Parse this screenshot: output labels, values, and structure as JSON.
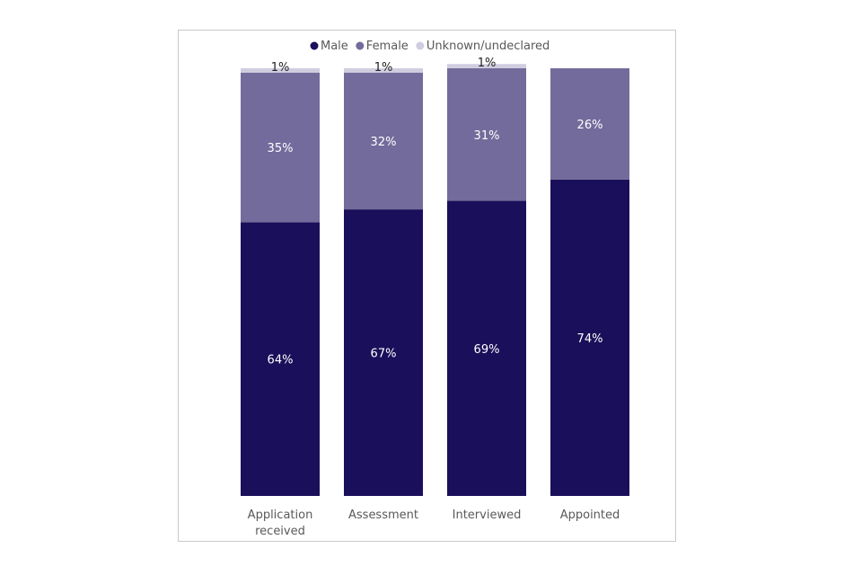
{
  "chart_data": {
    "type": "bar",
    "stacked": true,
    "categories": [
      "Application received",
      "Assessment",
      "Interviewed",
      "Appointed"
    ],
    "category_lines": [
      [
        "Application",
        "received"
      ],
      [
        "Assessment"
      ],
      [
        "Interviewed"
      ],
      [
        "Appointed"
      ]
    ],
    "series": [
      {
        "name": "Male",
        "values": [
          64,
          67,
          69,
          74
        ],
        "labels": [
          "64%",
          "67%",
          "69%",
          "74%"
        ],
        "color": "#1a0f5a"
      },
      {
        "name": "Female",
        "values": [
          35,
          32,
          31,
          26
        ],
        "labels": [
          "35%",
          "32%",
          "31%",
          "26%"
        ],
        "color": "#736b9b"
      },
      {
        "name": "Unknown/undeclared",
        "values": [
          1,
          1,
          1,
          0
        ],
        "labels": [
          "1%",
          "1%",
          "1%",
          ""
        ],
        "color": "#d0cde0"
      }
    ],
    "ylim": [
      0,
      100
    ],
    "legend_position": "top",
    "grid": false,
    "title": "",
    "xlabel": "",
    "ylabel": ""
  }
}
